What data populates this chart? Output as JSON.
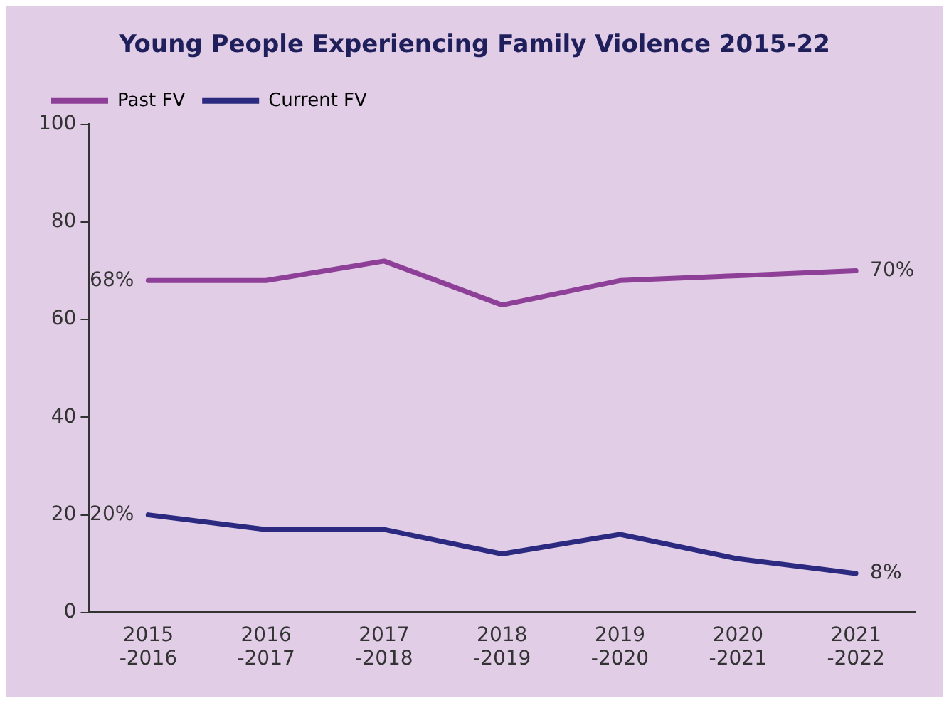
{
  "chart_data": {
    "type": "line",
    "title": "Young People Experiencing Family Violence 2015-22",
    "categories": [
      "2015\n-2016",
      "2016\n-2017",
      "2017\n-2018",
      "2018\n-2019",
      "2019\n-2020",
      "2020\n-2021",
      "2021\n-2022"
    ],
    "series": [
      {
        "name": "Past FV",
        "color": "#8e3f97",
        "values": [
          68,
          68,
          72,
          63,
          68,
          69,
          70
        ],
        "value_labels": [
          "68%",
          null,
          null,
          null,
          null,
          null,
          "70%"
        ]
      },
      {
        "name": "Current FV",
        "color": "#2b2a80",
        "values": [
          20,
          17,
          17,
          12,
          16,
          11,
          8
        ],
        "value_labels": [
          "20%",
          null,
          null,
          null,
          null,
          null,
          "8%"
        ]
      }
    ],
    "ylim": [
      0,
      100
    ],
    "yticks": [
      0,
      20,
      40,
      60,
      80,
      100
    ],
    "grid": false,
    "legend": "top left",
    "marker": "none",
    "line_style": "solid"
  }
}
